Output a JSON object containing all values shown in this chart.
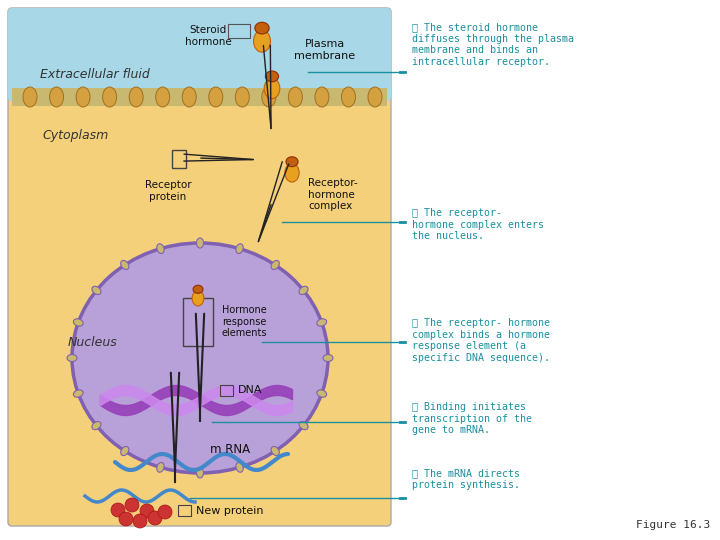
{
  "background_color": "#ffffff",
  "fig_w": 7.2,
  "fig_h": 5.4,
  "dpi": 100,
  "extracellular_fluid_color": "#a8d8e8",
  "cytoplasm_color": "#f5d07a",
  "nucleus_color": "#b8a0d8",
  "nucleus_border_color": "#8060b0",
  "membrane_color": "#c8b870",
  "labels": {
    "steroid_hormone": "Steroid\nhormone",
    "plasma_membrane": "Plasma\nmembrane",
    "extracellular_fluid": "Extracellular fluid",
    "cytoplasm": "Cytoplasm",
    "receptor_protein": "Receptor\nprotein",
    "receptor_hormone_complex": "Receptor-\nhormone\ncomplex",
    "nucleus": "Nucleus",
    "hormone_response_elements": "Hormone\nresponse\nelements",
    "dna": "DNA",
    "mrna": "m RNA",
    "new_protein": "New protein",
    "figure_caption": "Figure 16.3"
  },
  "step_texts": [
    "① The steroid hormone\ndiffuses through the plasma\nmembrane and binds an\nintracellular receptor.",
    "② The receptor-\nhormone complex enters\nthe nucleus.",
    "③ The receptor- hormone\ncomplex binds a hormone\nresponse element (a\nspecific DNA sequence).",
    "④ Binding initiates\ntranscription of the\ngene to mRNA.",
    "⑤ The mRNA directs\nprotein synthesis."
  ],
  "text_color": "#1a8fa0",
  "arrow_color": "#222222",
  "line_color": "#1a8fa0",
  "hormone_color": "#e8a020",
  "hormone_dark": "#c06010",
  "ribosome_color": "#cc3333",
  "mrna_color": "#4488cc",
  "dna_color1": "#9944bb",
  "dna_color2": "#cc88ee"
}
